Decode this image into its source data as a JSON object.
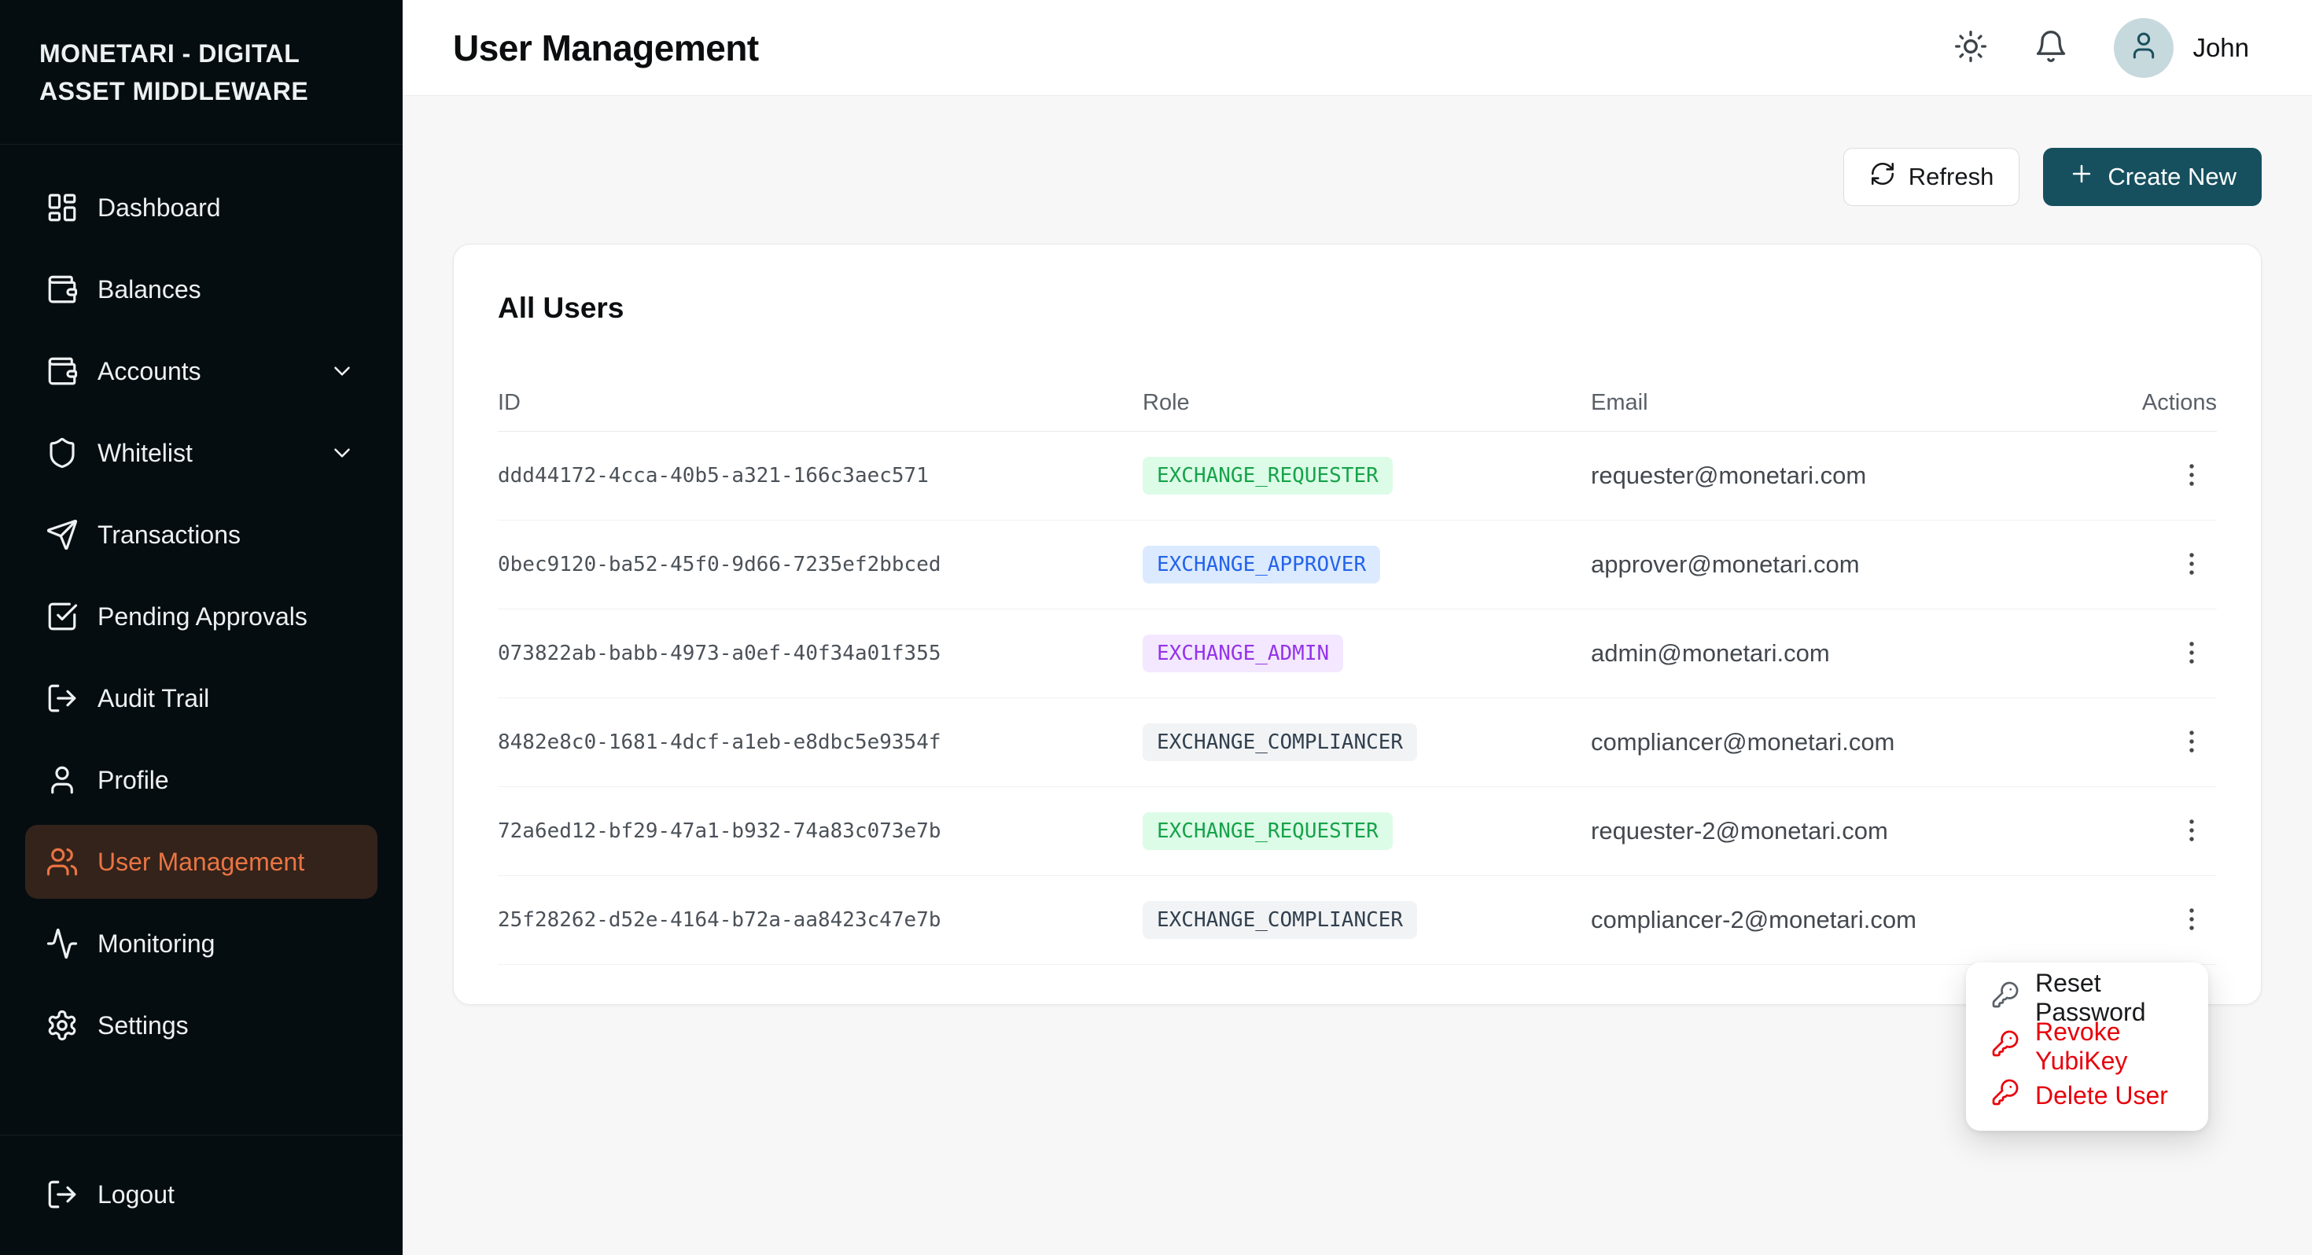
{
  "brand": {
    "title": "MONETARI - DIGITAL ASSET MIDDLEWARE"
  },
  "sidebar": {
    "items": [
      {
        "label": "Dashboard",
        "icon": "dashboard-icon",
        "active": false,
        "has_chevron": false
      },
      {
        "label": "Balances",
        "icon": "wallet-icon",
        "active": false,
        "has_chevron": false
      },
      {
        "label": "Accounts",
        "icon": "wallet-icon",
        "active": false,
        "has_chevron": true
      },
      {
        "label": "Whitelist",
        "icon": "shield-icon",
        "active": false,
        "has_chevron": true
      },
      {
        "label": "Transactions",
        "icon": "send-icon",
        "active": false,
        "has_chevron": false
      },
      {
        "label": "Pending Approvals",
        "icon": "square-check-icon",
        "active": false,
        "has_chevron": false
      },
      {
        "label": "Audit Trail",
        "icon": "log-out-icon",
        "active": false,
        "has_chevron": false
      },
      {
        "label": "Profile",
        "icon": "user-icon",
        "active": false,
        "has_chevron": false
      },
      {
        "label": "User Management",
        "icon": "users-icon",
        "active": true,
        "has_chevron": false
      },
      {
        "label": "Monitoring",
        "icon": "activity-icon",
        "active": false,
        "has_chevron": false
      },
      {
        "label": "Settings",
        "icon": "gear-icon",
        "active": false,
        "has_chevron": false
      }
    ],
    "logout": {
      "label": "Logout",
      "icon": "log-out-icon"
    }
  },
  "topbar": {
    "title": "User Management",
    "user_name": "John",
    "icons": [
      "sun-icon",
      "bell-icon",
      "user-icon"
    ]
  },
  "toolbar": {
    "refresh_label": "Refresh",
    "create_label": "Create New"
  },
  "users_card": {
    "title": "All Users",
    "columns": [
      "ID",
      "Role",
      "Email",
      "Actions"
    ],
    "rows": [
      {
        "id": "ddd44172-4cca-40b5-a321-166c3aec571",
        "role": "EXCHANGE_REQUESTER",
        "role_color": "green",
        "email": "requester@monetari.com"
      },
      {
        "id": "0bec9120-ba52-45f0-9d66-7235ef2bbced",
        "role": "EXCHANGE_APPROVER",
        "role_color": "blue",
        "email": "approver@monetari.com"
      },
      {
        "id": "073822ab-babb-4973-a0ef-40f34a01f355",
        "role": "EXCHANGE_ADMIN",
        "role_color": "purple",
        "email": "admin@monetari.com"
      },
      {
        "id": "8482e8c0-1681-4dcf-a1eb-e8dbc5e9354f",
        "role": "EXCHANGE_COMPLIANCER",
        "role_color": "gray",
        "email": "compliancer@monetari.com"
      },
      {
        "id": "72a6ed12-bf29-47a1-b932-74a83c073e7b",
        "role": "EXCHANGE_REQUESTER",
        "role_color": "green",
        "email": "requester-2@monetari.com"
      },
      {
        "id": "25f28262-d52e-4164-b72a-aa8423c47e7b",
        "role": "EXCHANGE_COMPLIANCER",
        "role_color": "gray",
        "email": "compliancer-2@monetari.com"
      }
    ]
  },
  "context_menu": {
    "items": [
      {
        "label": "Reset Password",
        "icon": "key-icon",
        "danger": false
      },
      {
        "label": "Revoke YubiKey",
        "icon": "key-icon",
        "danger": true
      },
      {
        "label": "Delete User",
        "icon": "key-icon",
        "danger": true
      }
    ]
  },
  "colors": {
    "sidebar_bg": "#060D11",
    "accent_orange": "#EA7443",
    "active_item_bg": "#33231B",
    "primary_button": "#16505F",
    "danger": "#E7000B",
    "badge_green_bg": "#DCFCE7",
    "badge_green_text": "#17A34A",
    "badge_blue_bg": "#DBEAFE",
    "badge_blue_text": "#2463EB",
    "badge_purple_bg": "#F3E8FF",
    "badge_purple_text": "#9533EA",
    "badge_gray_bg": "#F1F3F5",
    "badge_gray_text": "#32404E"
  }
}
